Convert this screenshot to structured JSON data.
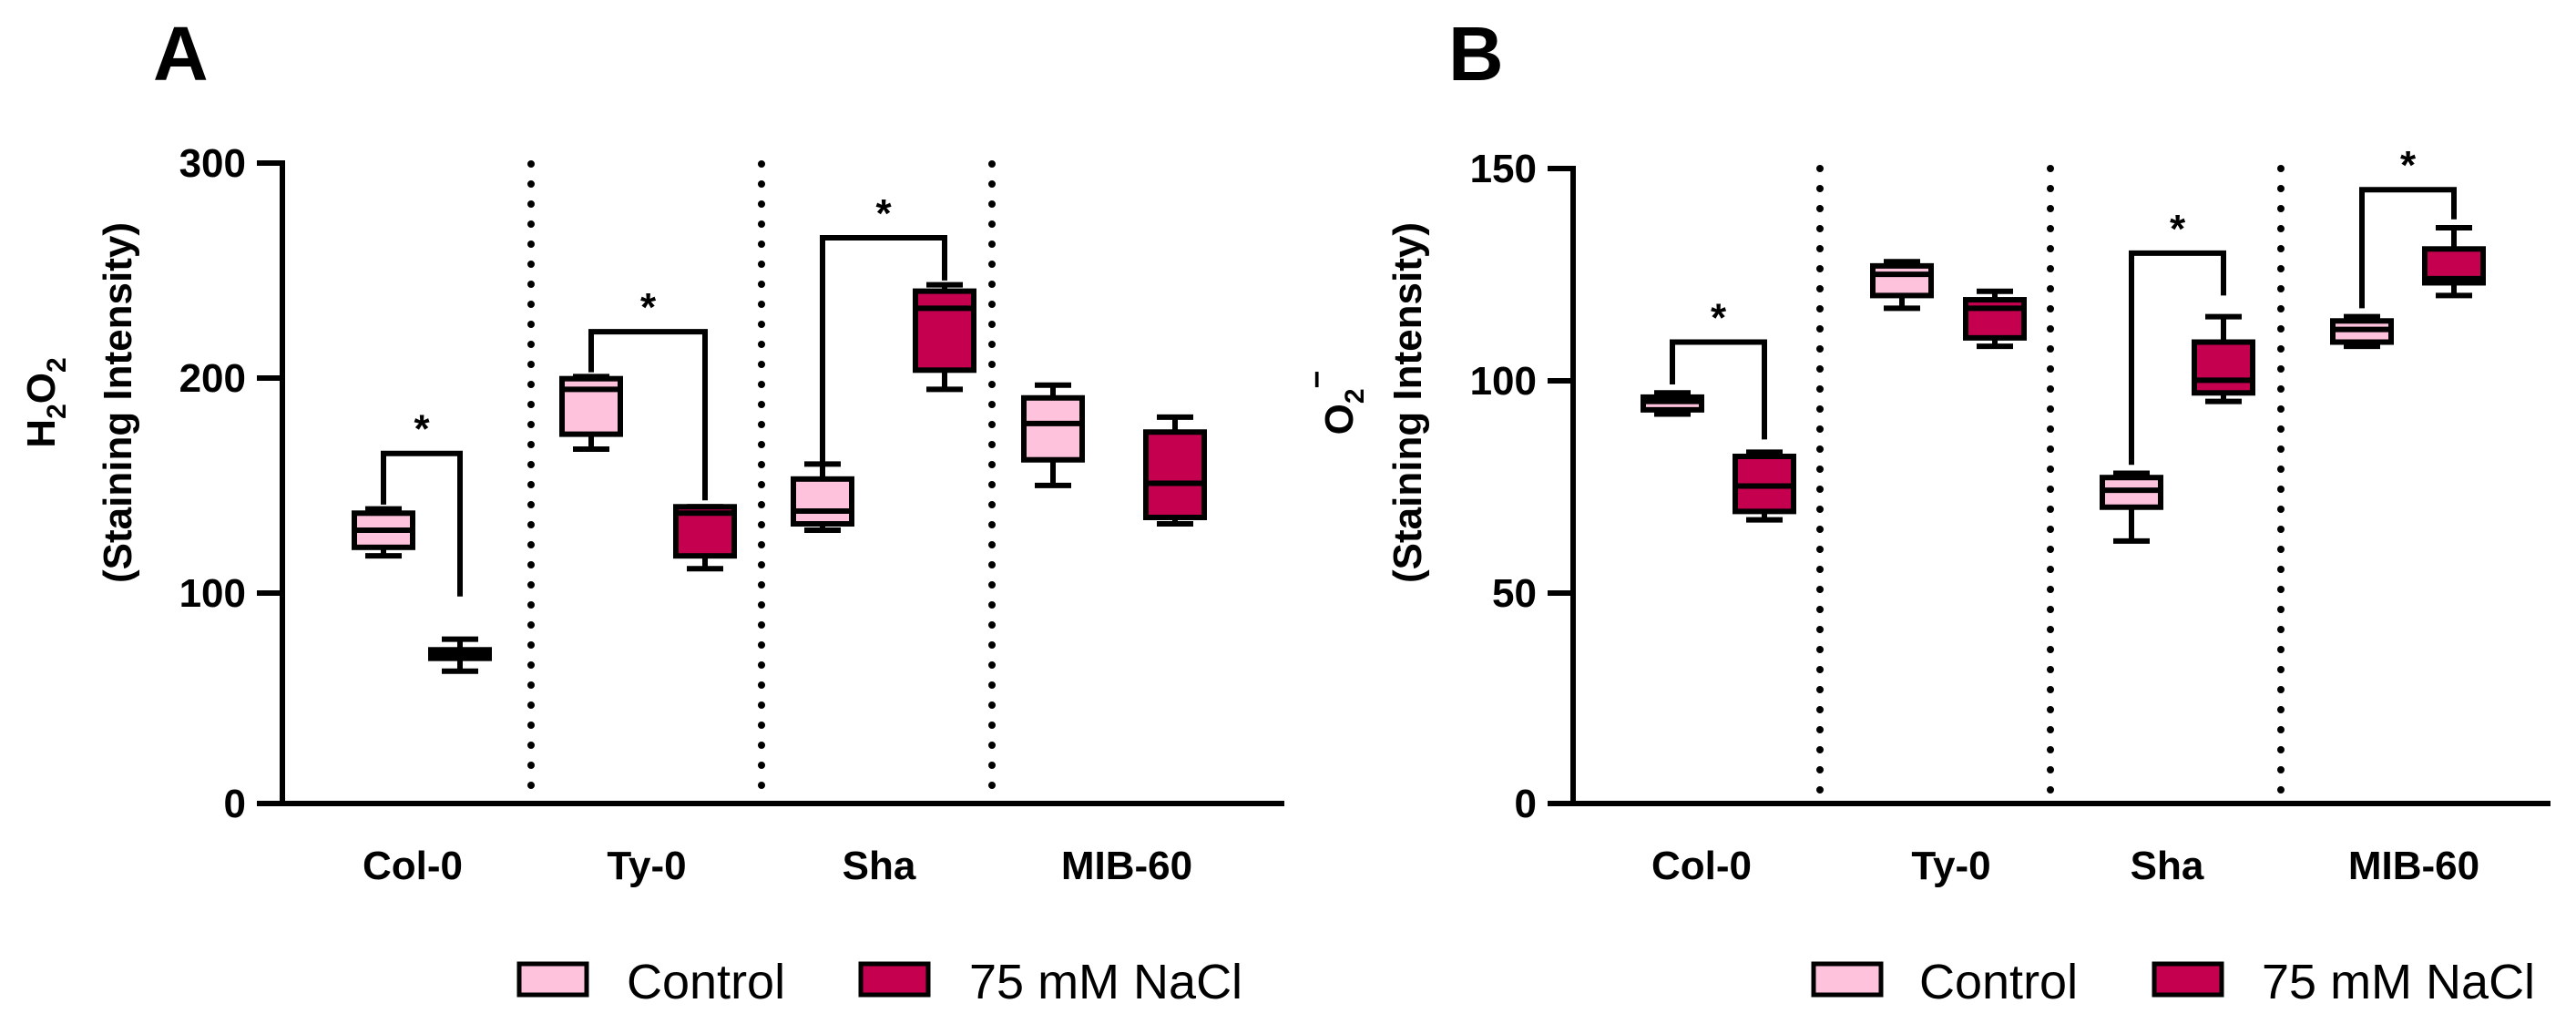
{
  "legend": {
    "items": [
      {
        "label": "Control",
        "color": "#FFC2DC"
      },
      {
        "label": "75 mM NaCl",
        "color": "#C4004F"
      }
    ]
  },
  "chart_data": [
    {
      "type": "box",
      "panel_label": "A",
      "ylabel_line1": "H2O2",
      "ylabel_line1_parts": {
        "base": "H",
        "sub1": "2",
        "mid": "O",
        "sub2": "2"
      },
      "ylabel_line2": "(Staining Intensity)",
      "ylim": [
        0,
        300
      ],
      "yticks": [
        0,
        100,
        200,
        300
      ],
      "ytick_labels": [
        "0",
        "100",
        "200",
        "300"
      ],
      "categories": [
        "Col-0",
        "Ty-0",
        "Sha",
        "MIB-60"
      ],
      "series": [
        {
          "name": "Control",
          "boxes": [
            {
              "min": 116,
              "q1": 120,
              "median": 128,
              "q3": 136,
              "max": 138
            },
            {
              "min": 166,
              "q1": 173,
              "median": 194,
              "q3": 199,
              "max": 200
            },
            {
              "min": 128,
              "q1": 131,
              "median": 137,
              "q3": 152,
              "max": 159
            },
            {
              "min": 149,
              "q1": 161,
              "median": 178,
              "q3": 190,
              "max": 196
            }
          ]
        },
        {
          "name": "75 mM NaCl",
          "boxes": [
            {
              "min": 62,
              "q1": 68,
              "median": 70,
              "q3": 72,
              "max": 77
            },
            {
              "min": 110,
              "q1": 116,
              "median": 136,
              "q3": 139,
              "max": 139
            },
            {
              "min": 194,
              "q1": 203,
              "median": 232,
              "q3": 240,
              "max": 243
            },
            {
              "min": 131,
              "q1": 134,
              "median": 150,
              "q3": 174,
              "max": 181
            }
          ]
        }
      ],
      "significance": [
        {
          "category_index": 0,
          "y_top": 164,
          "y_end_left": 140,
          "y_end_right": 97,
          "label": "*"
        },
        {
          "category_index": 1,
          "y_top": 221,
          "y_end_left": 202,
          "y_end_right": 142,
          "label": "*"
        },
        {
          "category_index": 2,
          "y_top": 265,
          "y_end_left": 160,
          "y_end_right": 245,
          "label": "*"
        }
      ]
    },
    {
      "type": "box",
      "panel_label": "B",
      "ylabel_line1": "O2−",
      "ylabel_line1_parts": {
        "base": "O",
        "sub1": "2",
        "sup": "−"
      },
      "ylabel_line2": "(Staining Intensity)",
      "ylim": [
        0,
        150
      ],
      "yticks": [
        0,
        50,
        100,
        150
      ],
      "ytick_labels": [
        "0",
        "50",
        "100",
        "150"
      ],
      "categories": [
        "Col-0",
        "Ty-0",
        "Sha",
        "MIB-60"
      ],
      "series": [
        {
          "name": "Control",
          "boxes": [
            {
              "min": 92,
              "q1": 93,
              "median": 95,
              "q3": 96,
              "max": 97
            },
            {
              "min": 117,
              "q1": 120,
              "median": 125,
              "q3": 127,
              "max": 128
            },
            {
              "min": 62,
              "q1": 70,
              "median": 74,
              "q3": 77,
              "max": 78
            },
            {
              "min": 108,
              "q1": 109,
              "median": 112,
              "q3": 114,
              "max": 115
            }
          ]
        },
        {
          "name": "75 mM NaCl",
          "boxes": [
            {
              "min": 67,
              "q1": 69,
              "median": 75,
              "q3": 82,
              "max": 83
            },
            {
              "min": 108,
              "q1": 110,
              "median": 117,
              "q3": 119,
              "max": 121
            },
            {
              "min": 95,
              "q1": 97,
              "median": 100,
              "q3": 109,
              "max": 115
            },
            {
              "min": 120,
              "q1": 123,
              "median": 124,
              "q3": 131,
              "max": 136
            }
          ]
        }
      ],
      "significance": [
        {
          "category_index": 0,
          "y_top": 109,
          "y_end_left": 99,
          "y_end_right": 86,
          "label": "*"
        },
        {
          "category_index": 2,
          "y_top": 130,
          "y_end_left": 80,
          "y_end_right": 120,
          "label": "*"
        },
        {
          "category_index": 3,
          "y_top": 145,
          "y_end_left": 117,
          "y_end_right": 138,
          "label": "*"
        }
      ]
    }
  ]
}
